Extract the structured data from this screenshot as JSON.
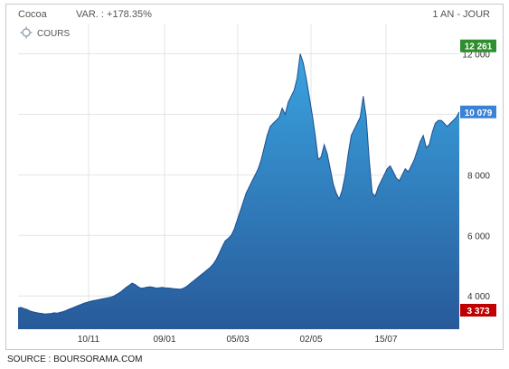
{
  "header": {
    "name": "Cocoa",
    "variation": "VAR. : +178.35%",
    "period": "1 AN - JOUR"
  },
  "legend_label": "COURS",
  "source": "SOURCE : BOURSORAMA.COM",
  "colors": {
    "area_top": "#3aa3e0",
    "area_bottom": "#285a9a",
    "line": "#1f4f8c",
    "high_badge": "#2f8f2f",
    "last_badge": "#3b82d6",
    "low_badge": "#c00000"
  },
  "chart_data": {
    "type": "area",
    "title": "Cocoa",
    "xlabel": "",
    "ylabel": "",
    "ylim": [
      2900,
      13000
    ],
    "grid": true,
    "x_ticks": [
      "10/11",
      "09/01",
      "05/03",
      "02/05",
      "15/07"
    ],
    "y_ticks": [
      "4 000",
      "6 000",
      "8 000",
      "10 000",
      "12 000"
    ],
    "y_tick_values": [
      4000,
      6000,
      8000,
      10000,
      12000
    ],
    "badges": {
      "high": "12 261",
      "last": "10 079",
      "low": "3 373"
    },
    "badge_values": {
      "high": 12261,
      "last": 10079,
      "low": 3373
    },
    "series": [
      {
        "values": [
          3600,
          3620,
          3580,
          3550,
          3500,
          3470,
          3450,
          3430,
          3420,
          3400,
          3410,
          3420,
          3440,
          3430,
          3460,
          3480,
          3520,
          3560,
          3600,
          3640,
          3680,
          3720,
          3760,
          3790,
          3820,
          3840,
          3860,
          3880,
          3900,
          3920,
          3940,
          3960,
          4000,
          4060,
          4120,
          4200,
          4280,
          4350,
          4420,
          4380,
          4300,
          4250,
          4270,
          4290,
          4300,
          4280,
          4260,
          4270,
          4280,
          4270,
          4260,
          4250,
          4240,
          4230,
          4220,
          4250,
          4300,
          4380,
          4460,
          4540,
          4620,
          4700,
          4780,
          4860,
          4940,
          5050,
          5200,
          5400,
          5620,
          5820,
          5900,
          6000,
          6200,
          6500,
          6800,
          7100,
          7400,
          7600,
          7800,
          8000,
          8200,
          8500,
          8900,
          9300,
          9600,
          9700,
          9800,
          9900,
          10200,
          10000,
          10400,
          10600,
          10800,
          11200,
          12000,
          11700,
          11200,
          10600,
          10000,
          9300,
          8500,
          8600,
          9000,
          8700,
          8200,
          7700,
          7400,
          7200,
          7500,
          8000,
          8700,
          9300,
          9500,
          9700,
          9900,
          10600,
          9900,
          8500,
          7400,
          7300,
          7600,
          7800,
          8000,
          8200,
          8300,
          8100,
          7900,
          7800,
          8000,
          8200,
          8100,
          8300,
          8500,
          8800,
          9100,
          9300,
          8900,
          9000,
          9400,
          9700,
          9800,
          9800,
          9700,
          9600,
          9700,
          9800,
          9900,
          10079
        ]
      }
    ]
  }
}
